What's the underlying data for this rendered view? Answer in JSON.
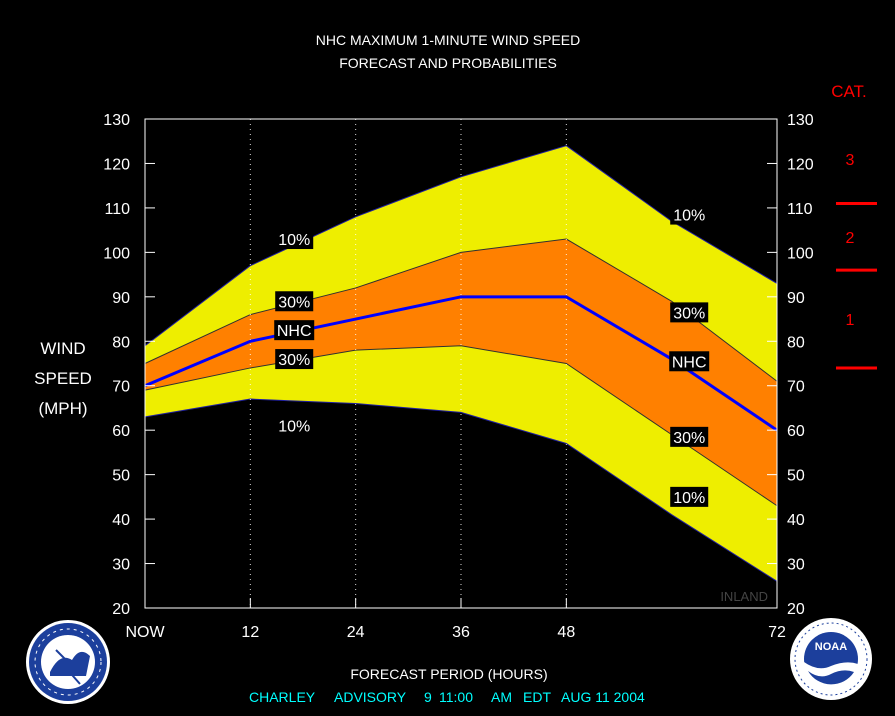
{
  "chart_data": {
    "type": "area",
    "title": "NHC MAXIMUM 1-MINUTE WIND SPEED",
    "subtitle": "FORECAST AND PROBABILITIES",
    "xlabel": "FORECAST PERIOD (HOURS)",
    "ylabel": [
      "WIND",
      "SPEED",
      "(MPH)"
    ],
    "x_ticks": [
      {
        "x": 0,
        "label": "NOW"
      },
      {
        "x": 12,
        "label": "12"
      },
      {
        "x": 24,
        "label": "24"
      },
      {
        "x": 36,
        "label": "36"
      },
      {
        "x": 48,
        "label": "48"
      },
      {
        "x": 72,
        "label": "72"
      }
    ],
    "xlim": [
      0,
      72
    ],
    "ylim": [
      20,
      130
    ],
    "y_ticks": [
      20,
      30,
      40,
      50,
      60,
      70,
      80,
      90,
      100,
      110,
      120,
      130
    ],
    "x": [
      0,
      12,
      24,
      36,
      48,
      60,
      72
    ],
    "series": [
      {
        "name": "10%",
        "role": "upper",
        "values": [
          79,
          97,
          108,
          117,
          124,
          107,
          93
        ]
      },
      {
        "name": "30%",
        "role": "upper",
        "values": [
          75,
          86,
          92,
          100,
          103,
          89,
          71
        ]
      },
      {
        "name": "NHC",
        "role": "forecast",
        "values": [
          70,
          80,
          85,
          90,
          90,
          76,
          60
        ]
      },
      {
        "name": "30%",
        "role": "lower",
        "values": [
          69,
          74,
          78,
          79,
          75,
          59,
          43
        ]
      },
      {
        "name": "10%",
        "role": "lower",
        "values": [
          63,
          67,
          66,
          64,
          57,
          41,
          26
        ]
      }
    ],
    "band_labels": [
      {
        "text": "10%",
        "x": 17,
        "y": 103
      },
      {
        "text": "30%",
        "x": 17,
        "y": 89
      },
      {
        "text": "NHC",
        "x": 17,
        "y": 82.5
      },
      {
        "text": "30%",
        "x": 17,
        "y": 76
      },
      {
        "text": "10%",
        "x": 17,
        "y": 61
      },
      {
        "text": "10%",
        "x": 62,
        "y": 108.5
      },
      {
        "text": "30%",
        "x": 62,
        "y": 86.5
      },
      {
        "text": "NHC",
        "x": 62,
        "y": 75.5
      },
      {
        "text": "30%",
        "x": 62,
        "y": 58.5
      },
      {
        "text": "10%",
        "x": 62,
        "y": 45
      }
    ],
    "annotation": "INLAND",
    "category": {
      "title": "CAT.",
      "labels": [
        {
          "text": "3",
          "y": 121
        },
        {
          "text": "2",
          "y": 103.5
        },
        {
          "text": "1",
          "y": 85
        }
      ],
      "thresholds": [
        111,
        96,
        74
      ]
    },
    "grid": "vertical dotted lines at 12, 24, 36, 48",
    "colors": {
      "outer_band": "#EEEE00",
      "inner_band": "#FF8000",
      "forecast_line": "#0000FF",
      "text": "#FFFFFF",
      "category": "#FF0000",
      "footer": "#00FFFF"
    }
  },
  "footer": {
    "storm": "CHARLEY",
    "advisory_label": "ADVISORY",
    "advisory_number": "9",
    "time": "11:00",
    "ampm": "AM",
    "zone": "EDT",
    "date": "AUG 11 2004"
  },
  "logos": {
    "left": {
      "name": "nws-logo",
      "text": "NATIONAL WEATHER SERVICE"
    },
    "right": {
      "name": "noaa-logo",
      "text": "NOAA"
    }
  }
}
